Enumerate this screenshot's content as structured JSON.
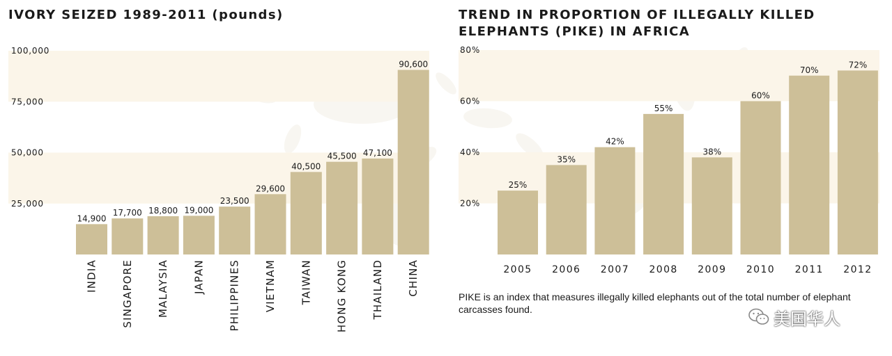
{
  "colors": {
    "bar": "#cdbf98",
    "band": "#fbf5e9",
    "splash": "#d9cdb0"
  },
  "charts": {
    "left_title": "IVORY SEIZED 1989-2011 (pounds)",
    "right_title": "TREND IN PROPORTION OF ILLEGALLY KILLED ELEPHANTS (PIKE) IN AFRICA",
    "note": "PIKE is an index that measures illegally killed elephants out of the total number of elephant carcasses found."
  },
  "watermark": {
    "text": "美国华人",
    "icon": "wechat-icon"
  },
  "chart_data": [
    {
      "type": "bar",
      "title": "IVORY SEIZED 1989-2011 (pounds)",
      "categories": [
        "INDIA",
        "SINGAPORE",
        "MALAYSIA",
        "JAPAN",
        "PHILIPPINES",
        "VIETNAM",
        "TAIWAN",
        "HONG KONG",
        "THAILAND",
        "CHINA"
      ],
      "values": [
        14900,
        17700,
        18800,
        19000,
        23500,
        29600,
        40500,
        45500,
        47100,
        90600
      ],
      "value_labels": [
        "14,900",
        "17,700",
        "18,800",
        "19,000",
        "23,500",
        "29,600",
        "40,500",
        "45,500",
        "47,100",
        "90,600"
      ],
      "yticks": [
        "25,000",
        "50,000",
        "75,000",
        "100,000"
      ],
      "ytick_values": [
        25000,
        50000,
        75000,
        100000
      ],
      "ylim": [
        0,
        100000
      ],
      "xlabel": "",
      "ylabel": "",
      "grid": false,
      "legend": "none"
    },
    {
      "type": "bar",
      "title": "TREND IN PROPORTION OF ILLEGALLY KILLED ELEPHANTS (PIKE) IN AFRICA",
      "categories": [
        "2005",
        "2006",
        "2007",
        "2008",
        "2009",
        "2010",
        "2011",
        "2012"
      ],
      "values": [
        25,
        35,
        42,
        55,
        38,
        60,
        70,
        72
      ],
      "value_labels": [
        "25%",
        "35%",
        "42%",
        "55%",
        "38%",
        "60%",
        "70%",
        "72%"
      ],
      "yticks": [
        "20%",
        "40%",
        "60%",
        "80%"
      ],
      "ytick_values": [
        20,
        40,
        60,
        80
      ],
      "ylim": [
        0,
        80
      ],
      "xlabel": "",
      "ylabel": "",
      "grid": false,
      "legend": "none"
    }
  ]
}
